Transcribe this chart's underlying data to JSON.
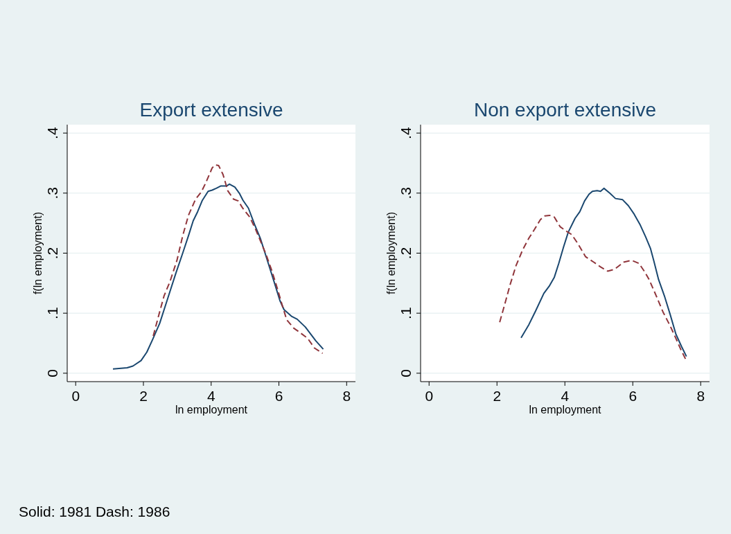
{
  "chart_data": [
    {
      "type": "line",
      "title": "Export extensive",
      "xlabel": "ln employment",
      "ylabel": "f(ln employment)",
      "annotations": [
        "Solid: 1981 Dash: 1986"
      ],
      "xlim": [
        -0.25,
        8.26
      ],
      "xticks": [
        0,
        2,
        4,
        6,
        8
      ],
      "ylim": [
        -0.014,
        0.414
      ],
      "yticks": [
        0,
        {
          "value": 0.1,
          "label": ".1"
        },
        {
          "value": 0.2,
          "label": ".2"
        },
        {
          "value": 0.3,
          "label": ".3"
        },
        {
          "value": 0.4,
          "label": ".4"
        }
      ],
      "grid": "y",
      "series": [
        {
          "color": "#1a476f",
          "line_style": "solid",
          "x": [
            1.1,
            1.52,
            1.69,
            1.93,
            2.1,
            2.27,
            2.48,
            2.72,
            2.96,
            3.16,
            3.33,
            3.47,
            3.6,
            3.74,
            3.91,
            4.03,
            4.15,
            4.29,
            4.46,
            4.54,
            4.7,
            4.83,
            4.94,
            5.1,
            5.28,
            5.45,
            5.58,
            5.72,
            5.86,
            6.03,
            6.15,
            6.37,
            6.54,
            6.78,
            7.09,
            7.31
          ],
          "values": [
            0.007,
            0.009,
            0.012,
            0.021,
            0.035,
            0.056,
            0.083,
            0.125,
            0.167,
            0.2,
            0.229,
            0.254,
            0.269,
            0.288,
            0.303,
            0.305,
            0.308,
            0.312,
            0.312,
            0.315,
            0.31,
            0.3,
            0.288,
            0.275,
            0.248,
            0.225,
            0.202,
            0.177,
            0.152,
            0.121,
            0.106,
            0.095,
            0.09,
            0.077,
            0.054,
            0.04
          ]
        },
        {
          "color": "#90353b",
          "line_style": "dashed",
          "x": [
            2.29,
            2.44,
            2.61,
            2.78,
            2.99,
            3.16,
            3.33,
            3.54,
            3.71,
            3.84,
            4.03,
            4.12,
            4.22,
            4.35,
            4.49,
            4.66,
            4.8,
            4.93,
            5.14,
            5.31,
            5.48,
            5.62,
            5.79,
            5.96,
            6.1,
            6.23,
            6.44,
            6.64,
            6.85,
            7.05,
            7.29
          ],
          "values": [
            0.062,
            0.094,
            0.129,
            0.152,
            0.188,
            0.229,
            0.263,
            0.29,
            0.302,
            0.317,
            0.342,
            0.347,
            0.346,
            0.331,
            0.304,
            0.29,
            0.287,
            0.275,
            0.26,
            0.24,
            0.217,
            0.198,
            0.171,
            0.14,
            0.113,
            0.089,
            0.075,
            0.067,
            0.058,
            0.042,
            0.033
          ]
        }
      ]
    },
    {
      "type": "line",
      "title": "Non export extensive",
      "xlabel": "ln employment",
      "ylabel": "f(ln employment)",
      "xlim": [
        -0.25,
        8.26
      ],
      "xticks": [
        0,
        2,
        4,
        6,
        8
      ],
      "ylim": [
        -0.014,
        0.414
      ],
      "yticks": [
        0,
        {
          "value": 0.1,
          "label": ".1"
        },
        {
          "value": 0.2,
          "label": ".2"
        },
        {
          "value": 0.3,
          "label": ".3"
        },
        {
          "value": 0.4,
          "label": ".4"
        }
      ],
      "grid": "y",
      "series": [
        {
          "color": "#1a476f",
          "line_style": "solid",
          "x": [
            2.71,
            2.94,
            3.14,
            3.38,
            3.55,
            3.69,
            3.82,
            3.96,
            4.1,
            4.3,
            4.44,
            4.58,
            4.71,
            4.81,
            4.95,
            5.05,
            5.15,
            5.32,
            5.49,
            5.7,
            5.87,
            6.04,
            6.21,
            6.38,
            6.52,
            6.62,
            6.76,
            6.93,
            7.1,
            7.27,
            7.44,
            7.58
          ],
          "values": [
            0.059,
            0.081,
            0.104,
            0.133,
            0.146,
            0.16,
            0.183,
            0.21,
            0.235,
            0.258,
            0.269,
            0.287,
            0.298,
            0.303,
            0.304,
            0.303,
            0.308,
            0.3,
            0.291,
            0.289,
            0.279,
            0.265,
            0.248,
            0.227,
            0.208,
            0.187,
            0.156,
            0.129,
            0.098,
            0.065,
            0.044,
            0.028
          ]
        },
        {
          "color": "#90353b",
          "line_style": "dashed",
          "x": [
            2.08,
            2.22,
            2.39,
            2.56,
            2.76,
            2.94,
            3.11,
            3.28,
            3.41,
            3.55,
            3.69,
            3.86,
            4.03,
            4.2,
            4.37,
            4.61,
            4.85,
            5.05,
            5.26,
            5.46,
            5.73,
            5.97,
            6.18,
            6.35,
            6.48,
            6.69,
            6.89,
            7.1,
            7.27,
            7.41,
            7.56
          ],
          "values": [
            0.085,
            0.113,
            0.148,
            0.179,
            0.206,
            0.225,
            0.24,
            0.256,
            0.262,
            0.263,
            0.26,
            0.244,
            0.237,
            0.231,
            0.217,
            0.194,
            0.185,
            0.177,
            0.17,
            0.173,
            0.185,
            0.188,
            0.183,
            0.169,
            0.156,
            0.129,
            0.102,
            0.079,
            0.058,
            0.04,
            0.023
          ]
        }
      ]
    }
  ]
}
